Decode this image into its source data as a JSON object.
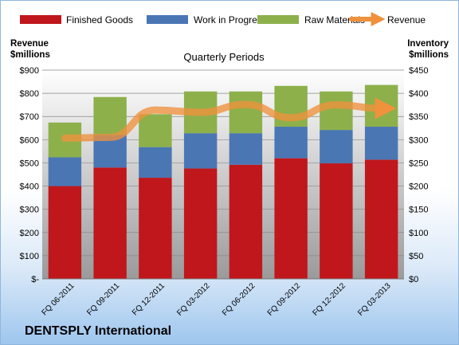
{
  "chart_data": {
    "type": "bar",
    "title": "Quarterly Periods",
    "company": "DENTSPLY International",
    "left_axis_title_line1": "Revenue",
    "left_axis_title_line2": "$millions",
    "right_axis_title_line1": "Inventory",
    "right_axis_title_line2": "$millions",
    "categories": [
      "FQ 06-2011",
      "FQ 09-2011",
      "FQ 12-2011",
      "FQ 03-2012",
      "FQ 06-2012",
      "FQ 09-2012",
      "FQ 12-2012",
      "FQ 03-2013"
    ],
    "left_ticks": [
      "$-",
      "$100",
      "$200",
      "$300",
      "$400",
      "$500",
      "$600",
      "$700",
      "$800",
      "$900"
    ],
    "right_ticks": [
      "$0",
      "$50",
      "$100",
      "$150",
      "$200",
      "$250",
      "$300",
      "$350",
      "$400",
      "$450"
    ],
    "left_ylim": [
      0,
      900
    ],
    "right_ylim": [
      0,
      450
    ],
    "legend_position": "top",
    "series": [
      {
        "name": "Finished Goods",
        "type": "stacked-bar",
        "axis": "right",
        "color": "#c0171c",
        "values": [
          200,
          240,
          218,
          238,
          246,
          260,
          249,
          257
        ]
      },
      {
        "name": "Work in Progress",
        "type": "stacked-bar",
        "axis": "right",
        "color": "#4a76b4",
        "values": [
          62,
          70,
          66,
          76,
          68,
          68,
          72,
          71
        ]
      },
      {
        "name": "Raw Materials",
        "type": "stacked-bar",
        "axis": "right",
        "color": "#8db04b",
        "values": [
          75,
          82,
          71,
          90,
          90,
          88,
          83,
          90
        ]
      },
      {
        "name": "Revenue",
        "type": "line",
        "axis": "left",
        "color": "#f0913c",
        "values": [
          607,
          610,
          728,
          718,
          752,
          695,
          750,
          735
        ]
      }
    ]
  }
}
